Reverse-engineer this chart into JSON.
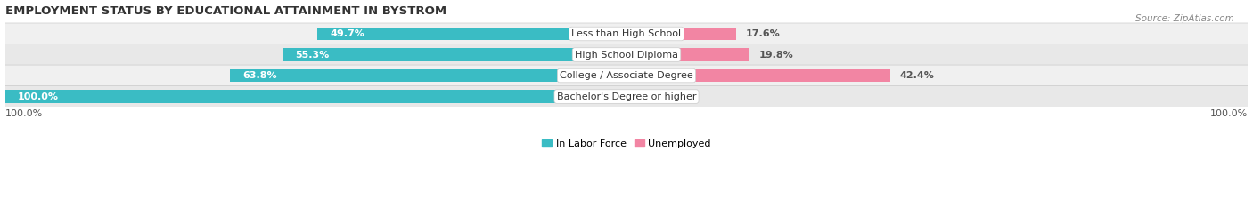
{
  "title": "EMPLOYMENT STATUS BY EDUCATIONAL ATTAINMENT IN BYSTROM",
  "source": "Source: ZipAtlas.com",
  "categories": [
    "Less than High School",
    "High School Diploma",
    "College / Associate Degree",
    "Bachelor's Degree or higher"
  ],
  "labor_force": [
    49.7,
    55.3,
    63.8,
    100.0
  ],
  "unemployed": [
    17.6,
    19.8,
    42.4,
    0.0
  ],
  "labor_force_color": "#3abcc4",
  "unemployed_color": "#f285a3",
  "row_bg_even": "#f0f0f0",
  "row_bg_odd": "#e8e8e8",
  "axis_label_left": "100.0%",
  "axis_label_right": "100.0%",
  "title_fontsize": 9.5,
  "bar_label_fontsize": 8,
  "category_fontsize": 8,
  "legend_fontsize": 8,
  "source_fontsize": 7.5
}
